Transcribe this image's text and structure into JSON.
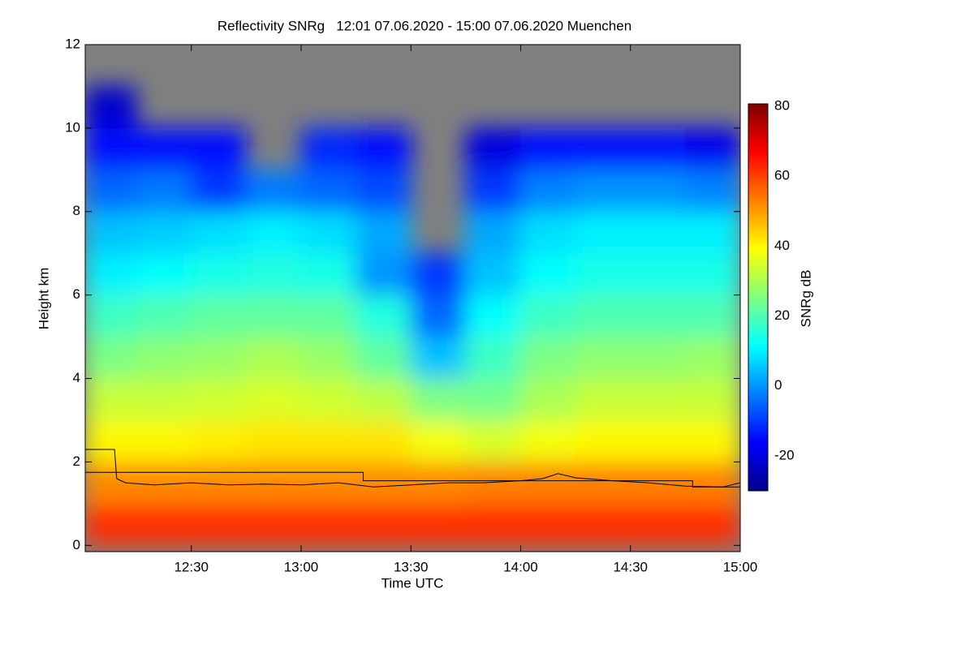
{
  "chart_data": {
    "type": "heatmap",
    "title": "Reflectivity SNRg   12:01 07.06.2020 - 15:00 07.06.2020 Muenchen",
    "x_label": "Time UTC",
    "y_label": "Height km",
    "colorbar_label": "SNRg dB",
    "xlim": [
      12.0167,
      15.0
    ],
    "ylim": [
      -0.15,
      12
    ],
    "xticks": [
      {
        "value": 12.5,
        "label": "12:30"
      },
      {
        "value": 13.0,
        "label": "13:00"
      },
      {
        "value": 13.5,
        "label": "13:30"
      },
      {
        "value": 14.0,
        "label": "14:00"
      },
      {
        "value": 14.5,
        "label": "14:30"
      },
      {
        "value": 15.0,
        "label": "15:00"
      }
    ],
    "yticks": [
      0,
      2,
      4,
      6,
      8,
      10,
      12
    ],
    "clim": [
      -30,
      80.7
    ],
    "cticks": [
      -20,
      0,
      20,
      40,
      60,
      80
    ],
    "colormap": [
      "#00008b",
      "#0000ff",
      "#0080ff",
      "#00ffff",
      "#80ff80",
      "#ffff00",
      "#ff8000",
      "#ff0000",
      "#800000"
    ],
    "missing_color": "#808080",
    "x": [
      12.0167,
      12.25,
      12.5,
      12.75,
      13.0,
      13.25,
      13.5,
      13.75,
      14.0,
      14.25,
      14.5,
      14.75,
      15.0
    ],
    "y": [
      0,
      1,
      2,
      3,
      4,
      5,
      6,
      7,
      8,
      9,
      10,
      11,
      12
    ],
    "z": [
      [
        62,
        62,
        62,
        62,
        62,
        62,
        62,
        62,
        62,
        62,
        62,
        62
      ],
      [
        52,
        52,
        52,
        52,
        52,
        52,
        52,
        53,
        53,
        53,
        53,
        53
      ],
      [
        40,
        40,
        41,
        42,
        42,
        42,
        38,
        35,
        38,
        40,
        40,
        40
      ],
      [
        33,
        33,
        34,
        35,
        34,
        32,
        25,
        24,
        30,
        33,
        33,
        33
      ],
      [
        25,
        27,
        28,
        30,
        28,
        22,
        5,
        18,
        25,
        27,
        27,
        28
      ],
      [
        18,
        20,
        22,
        22,
        22,
        15,
        -5,
        12,
        18,
        20,
        20,
        20
      ],
      [
        10,
        12,
        14,
        15,
        14,
        0,
        -10,
        5,
        12,
        14,
        14,
        14
      ],
      [
        5,
        6,
        8,
        10,
        8,
        2,
        null,
        2,
        8,
        10,
        10,
        10
      ],
      [
        -5,
        -3,
        -10,
        -3,
        -5,
        -8,
        null,
        -10,
        -2,
        0,
        0,
        -2
      ],
      [
        -15,
        -15,
        -15,
        null,
        -12,
        -15,
        null,
        -20,
        -15,
        -15,
        -15,
        -18
      ],
      [
        -22,
        null,
        null,
        null,
        null,
        null,
        null,
        null,
        null,
        null,
        null,
        null
      ],
      [
        null,
        null,
        null,
        null,
        null,
        null,
        null,
        null,
        null,
        null,
        null,
        null
      ]
    ],
    "lines": [
      {
        "color": "#000000",
        "x": [
          12.0167,
          13.283,
          13.283,
          14.783,
          14.783,
          15.0
        ],
        "y": [
          1.75,
          1.75,
          1.55,
          1.55,
          1.4,
          1.4
        ]
      },
      {
        "color": "#000000",
        "x": [
          12.0167,
          12.15,
          12.16,
          12.2,
          12.33,
          12.5,
          12.67,
          12.83,
          13.0,
          13.17,
          13.33,
          13.5,
          13.67,
          13.83,
          14.0,
          14.1,
          14.17,
          14.25,
          14.42,
          14.58,
          14.75,
          14.92,
          15.0
        ],
        "y": [
          2.3,
          2.3,
          1.6,
          1.5,
          1.45,
          1.5,
          1.45,
          1.47,
          1.45,
          1.5,
          1.4,
          1.45,
          1.5,
          1.5,
          1.55,
          1.6,
          1.72,
          1.62,
          1.55,
          1.5,
          1.42,
          1.4,
          1.5
        ]
      }
    ]
  }
}
